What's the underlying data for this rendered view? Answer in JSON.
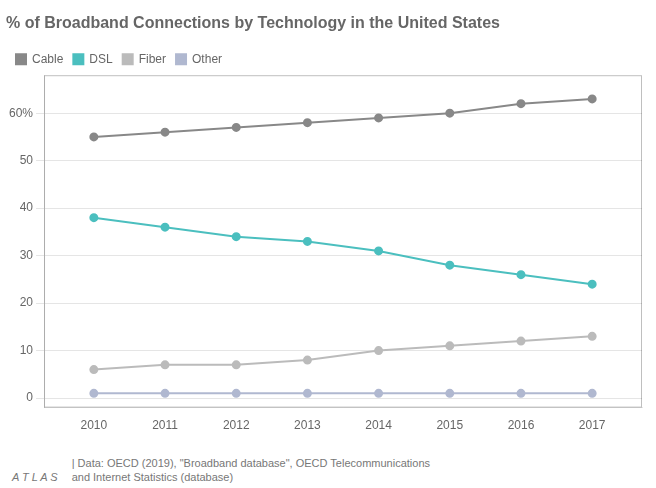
{
  "chart_data": {
    "type": "line",
    "title": "% of Broadband Connections by Technology in the United States",
    "x": [
      2010,
      2011,
      2012,
      2013,
      2014,
      2015,
      2016,
      2017
    ],
    "series": [
      {
        "name": "Cable",
        "color": "#888888",
        "marker": "circle",
        "values": [
          55,
          56,
          57,
          58,
          59,
          60,
          62,
          63
        ]
      },
      {
        "name": "DSL",
        "color": "#4bbfbf",
        "marker": "circle",
        "values": [
          38,
          36,
          34,
          33,
          31,
          28,
          26,
          24
        ]
      },
      {
        "name": "Fiber",
        "color": "#bbbbbb",
        "marker": "circle",
        "values": [
          6,
          7,
          7,
          8,
          10,
          11,
          12,
          13
        ]
      },
      {
        "name": "Other",
        "color": "#b0b8d0",
        "marker": "circle",
        "values": [
          1,
          1,
          1,
          1,
          1,
          1,
          1,
          1
        ]
      }
    ],
    "xlim": [
      2009.3,
      2017.7
    ],
    "xticks": [
      2010,
      2011,
      2012,
      2013,
      2014,
      2015,
      2016,
      2017
    ],
    "ylim": [
      -2,
      68
    ],
    "yticks": [
      0,
      10,
      20,
      30,
      40,
      50,
      {
        "value": 60,
        "label": "60%"
      }
    ],
    "grid": true,
    "legend": "upper left",
    "annotations": [
      "A T L A S",
      "| Data: OECD (2019), \"Broadband database\", OECD Telecommunications\nand Internet Statistics (database)"
    ]
  }
}
